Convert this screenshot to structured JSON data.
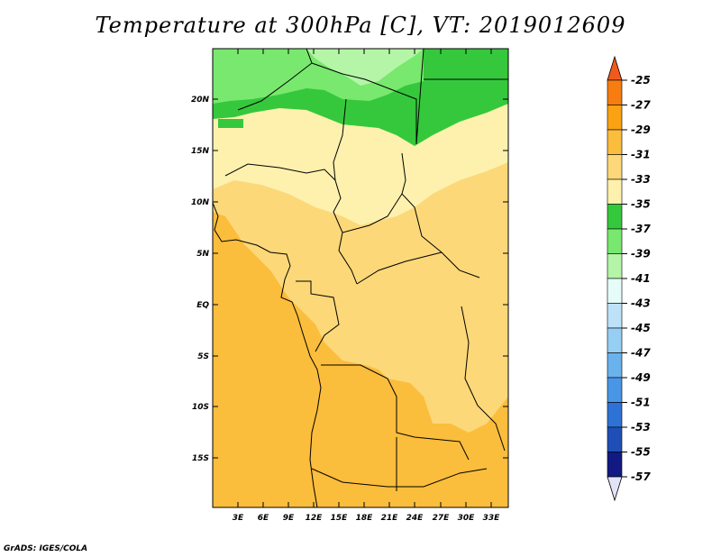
{
  "title": "Temperature at 300hPa [C], VT: 2019012609",
  "credit": "GrADS: IGES/COLA",
  "map": {
    "lat_labels": [
      "20N",
      "15N",
      "10N",
      "5N",
      "EQ",
      "5S",
      "10S",
      "15S"
    ],
    "lon_labels": [
      "3E",
      "6E",
      "9E",
      "12E",
      "15E",
      "18E",
      "21E",
      "24E",
      "27E",
      "30E",
      "33E"
    ]
  },
  "colorbar": {
    "labels": [
      "-25",
      "-27",
      "-29",
      "-31",
      "-33",
      "-35",
      "-37",
      "-39",
      "-41",
      "-43",
      "-45",
      "-47",
      "-49",
      "-51",
      "-53",
      "-55",
      "-57"
    ],
    "colors": {
      "gt_-25": "#f05a1e",
      "-27_-25": "#f87d10",
      "-29_-27": "#f9a312",
      "-31_-29": "#fbbd3c",
      "-33_-31": "#fcd879",
      "-35_-33": "#fdf1ad",
      "-37_-35": "#35c83c",
      "-39_-37": "#78e86e",
      "-41_-39": "#b4f5a7",
      "-43_-41": "#e6fcf8",
      "-45_-43": "#bde2f8",
      "-47_-45": "#96cef4",
      "-49_-47": "#6ab2ec",
      "-51_-49": "#4996e6",
      "-53_-51": "#2e72d6",
      "-55_-53": "#1f4fb6",
      "-57_-55": "#111a82",
      "lt_-57": "#e3e3f8"
    }
  },
  "field_colors": {
    "orange_dark": "#fbbd3c",
    "orange_light": "#fcd879",
    "yellow": "#fdf1ad",
    "green": "#35c83c",
    "light_green": "#78e86e",
    "pale_green": "#b4f5a7"
  }
}
